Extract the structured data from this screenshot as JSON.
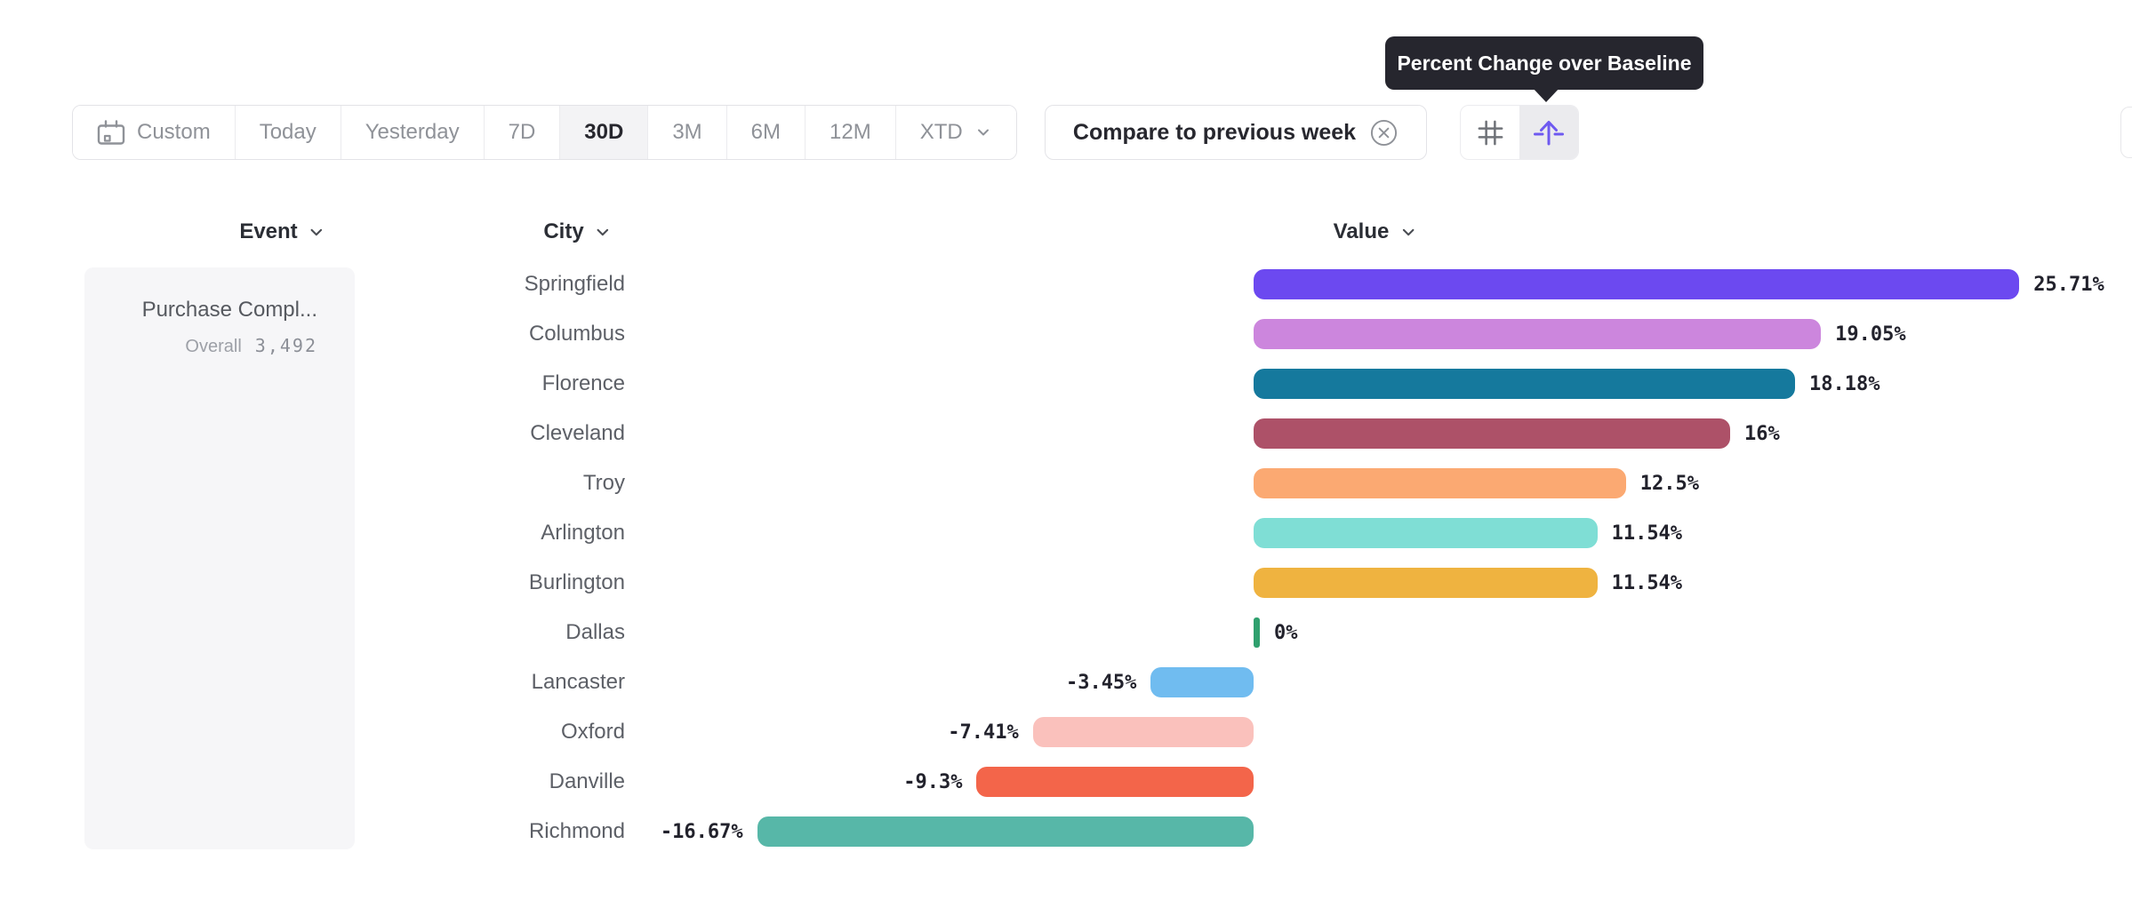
{
  "tooltip": {
    "text": "Percent Change over Baseline"
  },
  "toolbar": {
    "date_ranges": [
      {
        "label": "Custom",
        "icon": "calendar-icon",
        "selected": false,
        "chevron": false
      },
      {
        "label": "Today",
        "selected": false,
        "chevron": false
      },
      {
        "label": "Yesterday",
        "selected": false,
        "chevron": false
      },
      {
        "label": "7D",
        "selected": false,
        "chevron": false
      },
      {
        "label": "30D",
        "selected": true,
        "chevron": false
      },
      {
        "label": "3M",
        "selected": false,
        "chevron": false
      },
      {
        "label": "6M",
        "selected": false,
        "chevron": false
      },
      {
        "label": "12M",
        "selected": false,
        "chevron": false
      },
      {
        "label": "XTD",
        "selected": false,
        "chevron": true
      }
    ],
    "compare": {
      "label": "Compare to previous week",
      "dismiss_icon": "circle-x-icon"
    },
    "view_toggles": [
      {
        "icon": "hash-grid-icon",
        "active": false
      },
      {
        "icon": "baseline-arrow-icon",
        "active": true
      }
    ]
  },
  "columns": {
    "event": "Event",
    "city": "City",
    "value": "Value"
  },
  "event_card": {
    "title": "Purchase Compl...",
    "overall_label": "Overall",
    "overall_value": "3,492"
  },
  "chart_data": {
    "type": "bar",
    "orientation": "horizontal",
    "unit": "%",
    "baseline": 0,
    "xlim": [
      -16.67,
      25.71
    ],
    "grid": false,
    "categories": [
      "Springfield",
      "Columbus",
      "Florence",
      "Cleveland",
      "Troy",
      "Arlington",
      "Burlington",
      "Dallas",
      "Lancaster",
      "Oxford",
      "Danville",
      "Richmond"
    ],
    "values": [
      25.71,
      19.05,
      18.18,
      16,
      12.5,
      11.54,
      11.54,
      0,
      -3.45,
      -7.41,
      -9.3,
      -16.67
    ],
    "value_labels": [
      "25.71%",
      "19.05%",
      "18.18%",
      "16%",
      "12.5%",
      "11.54%",
      "11.54%",
      "0%",
      "-3.45%",
      "-7.41%",
      "-9.3%",
      "-16.67%"
    ],
    "bar_colors": [
      "#6c49f0",
      "#cc86dd",
      "#15799d",
      "#ad5168",
      "#fba972",
      "#7fded5",
      "#efb340",
      "#2fa06e",
      "#70bcf0",
      "#fac1bc",
      "#f3654a",
      "#57b7a8"
    ]
  },
  "colors": {
    "accent_purple": "#6e59f0",
    "tooltip_bg": "#26262e",
    "selected_segment_bg": "#f3f3f5",
    "muted_text": "#8f9298",
    "dark_text": "#27272e",
    "city_text": "#5d6067",
    "value_text": "#22222c",
    "card_bg": "#f6f6f8",
    "border": "#e3e3e7"
  }
}
